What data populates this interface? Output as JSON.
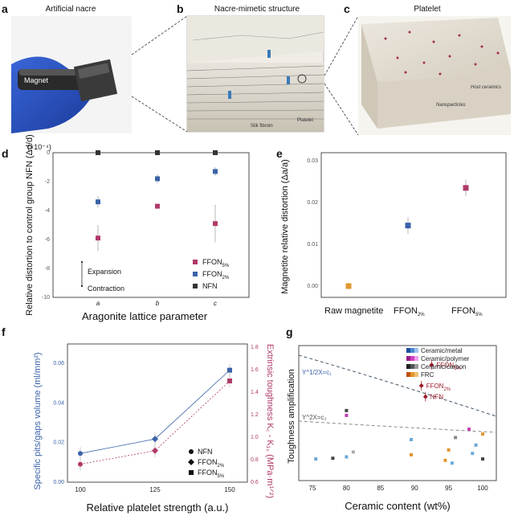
{
  "panel_a": {
    "letter": "a",
    "title": "Artificial nacre",
    "magnet_label": "Magnet"
  },
  "panel_b": {
    "letter": "b",
    "title": "Nacre-mimetic structure",
    "silk_label": "Silk fibroin",
    "platelet_label": "Platelet"
  },
  "panel_c": {
    "letter": "c",
    "title": "Platelet",
    "host_label": "Host ceramics",
    "nano_label": "Nanoparticles"
  },
  "panel_d": {
    "letter": "d",
    "expansion": "Expansion",
    "contraction": "Contraction"
  },
  "panel_e": {
    "letter": "e"
  },
  "panel_f": {
    "letter": "f"
  },
  "panel_g": {
    "letter": "g",
    "curve1": "Y^1/2X=c₁",
    "curve2": "Y^2X=c₂"
  },
  "colors": {
    "pink": "#b03a6a",
    "blue": "#3a62a8",
    "black": "#333333",
    "orange": "#e0962e",
    "darkred": "#9a1c2a"
  },
  "chart_data": [
    {
      "id": "d",
      "type": "scatter",
      "multiplier": "(×10⁻⁴)",
      "categories": [
        "a",
        "b",
        "c"
      ],
      "xlabel": "Aragonite lattice parameter",
      "ylabel": "Relative distortion to control group NFN  (Δd/d)",
      "ylim": [
        -10,
        0
      ],
      "yticks": [
        "0",
        "-2",
        "-4",
        "-6",
        "-8",
        "-10"
      ],
      "series": [
        {
          "name": "FFON",
          "sub": "5%",
          "color": "#b03a6a",
          "values": [
            -5.9,
            -3.7,
            -4.9
          ],
          "err": [
            0.9,
            0,
            1.3
          ]
        },
        {
          "name": "FFON",
          "sub": "2%",
          "color": "#3a62a8",
          "values": [
            -3.4,
            -1.8,
            -1.3
          ],
          "err": [
            0.4,
            0.3,
            0.3
          ]
        },
        {
          "name": "NFN",
          "color": "#333333",
          "values": [
            0,
            0,
            0
          ],
          "err": [
            0,
            0,
            0
          ]
        }
      ]
    },
    {
      "id": "e",
      "type": "scatter",
      "categories": [
        "Raw magnetite",
        "FFON",
        "FFON"
      ],
      "category_subs": [
        "",
        "2%",
        "5%"
      ],
      "ylabel": "Magnetite relative distortion  (Δa/a)",
      "ylim": [
        0,
        0.03
      ],
      "yticks": [
        "0.00",
        "0.01",
        "0.02",
        "0.03"
      ],
      "values": [
        0.0,
        0.0145,
        0.0235
      ],
      "err": [
        0,
        0.002,
        0.002
      ],
      "colors": [
        "#e0962e",
        "#3a62a8",
        "#b03a6a"
      ]
    },
    {
      "id": "f",
      "type": "line",
      "xlabel": "Relative platelet strength (a.u.)",
      "ylabel_left": "Specific pits/gaps volume (ml/mm²)",
      "ylabel_right": "Extrinsic toughness K꜀ - K₁꜀ (MPa·m¹ᐟ²)",
      "x": [
        100,
        125,
        150
      ],
      "xticks": [
        "100",
        "125",
        "150"
      ],
      "ylim_left": [
        0,
        0.06
      ],
      "yticks_left": [
        "0.00",
        "0.02",
        "0.04",
        "0.06"
      ],
      "ylim_right": [
        0.6,
        1.8
      ],
      "yticks_right": [
        "0.6",
        "0.8",
        "1.0",
        "1.2",
        "1.4",
        "1.6",
        "1.8"
      ],
      "series": [
        {
          "name": "pits volume",
          "axis": "left",
          "color": "#3a62a8",
          "values": [
            0.0145,
            0.0218,
            0.0565
          ]
        },
        {
          "name": "toughness",
          "axis": "right",
          "color": "#b03a6a",
          "values": [
            0.76,
            0.88,
            1.5
          ]
        }
      ],
      "legend": [
        {
          "name": "NFN",
          "marker": "circle"
        },
        {
          "name": "FFON",
          "sub": "2%",
          "marker": "diamond"
        },
        {
          "name": "FFON",
          "sub": "5%",
          "marker": "square"
        }
      ]
    },
    {
      "id": "g",
      "type": "scatter",
      "xlabel": "Ceramic content (wt%)",
      "ylabel": "Toughness amplification",
      "xlim": [
        73,
        102
      ],
      "xticks": [
        "75",
        "80",
        "85",
        "90",
        "95",
        "100"
      ],
      "legend": [
        "Ceramic/metal",
        "Ceramic/polymer",
        "Ceramic/carbon",
        "FRC"
      ],
      "highlights": [
        {
          "name": "FFON",
          "sub": "5%",
          "x": 92.5,
          "y": 15.8
        },
        {
          "name": "FFON",
          "sub": "2%",
          "x": 91.0,
          "y": 12.8
        },
        {
          "name": "NFN",
          "x": 91.6,
          "y": 11.2
        }
      ],
      "points": [
        {
          "x": 75.5,
          "y": 2.2,
          "c": "#6aa8d8"
        },
        {
          "x": 78,
          "y": 2.3,
          "c": "#444"
        },
        {
          "x": 80,
          "y": 2.5,
          "c": "#6aa8d8"
        },
        {
          "x": 80,
          "y": 8.5,
          "c": "#c040b0"
        },
        {
          "x": 80,
          "y": 9.2,
          "c": "#444"
        },
        {
          "x": 81,
          "y": 3.2,
          "c": "#aaa"
        },
        {
          "x": 89.5,
          "y": 5.0,
          "c": "#6aa8d8"
        },
        {
          "x": 89.5,
          "y": 2.8,
          "c": "#e0962e"
        },
        {
          "x": 94.5,
          "y": 2.0,
          "c": "#e0962e"
        },
        {
          "x": 95,
          "y": 3.5,
          "c": "#e0962e"
        },
        {
          "x": 95.5,
          "y": 1.6,
          "c": "#6aa8d8"
        },
        {
          "x": 96,
          "y": 5.3,
          "c": "#888"
        },
        {
          "x": 98,
          "y": 6.5,
          "c": "#c040b0"
        },
        {
          "x": 99,
          "y": 4.2,
          "c": "#6aa8d8"
        },
        {
          "x": 100,
          "y": 5.8,
          "c": "#e0962e"
        },
        {
          "x": 100,
          "y": 2.2,
          "c": "#444"
        },
        {
          "x": 98.5,
          "y": 3.0,
          "c": "#6aa8d8"
        }
      ]
    }
  ]
}
